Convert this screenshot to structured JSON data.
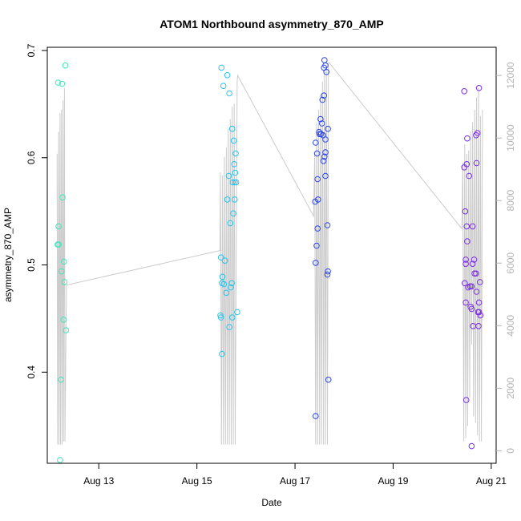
{
  "chart_data": {
    "type": "scatter",
    "title": "ATOM1 Northbound asymmetry_870_AMP",
    "xlabel": "Date",
    "ylabel": "asymmetry_870_AMP",
    "x_ticks": [
      {
        "value": 13.0,
        "label": "Aug 13"
      },
      {
        "value": 15.0,
        "label": "Aug 15"
      },
      {
        "value": 17.0,
        "label": "Aug 17"
      },
      {
        "value": 19.0,
        "label": "Aug 19"
      },
      {
        "value": 21.0,
        "label": "Aug 21"
      }
    ],
    "xlim": [
      11.95,
      21.1
    ],
    "ylim": [
      0.315,
      0.703
    ],
    "y_ticks": [
      {
        "value": 0.4,
        "label": "0.4"
      },
      {
        "value": 0.5,
        "label": "0.5"
      },
      {
        "value": 0.6,
        "label": "0.6"
      },
      {
        "value": 0.7,
        "label": "0.7"
      }
    ],
    "y2lim": [
      -400,
      12900
    ],
    "y2_ticks": [
      {
        "value": 0,
        "label": "0"
      },
      {
        "value": 2000,
        "label": "2000"
      },
      {
        "value": 4000,
        "label": "4000"
      },
      {
        "value": 6000,
        "label": "6000"
      },
      {
        "value": 8000,
        "label": "8000"
      },
      {
        "value": 10000,
        "label": "10000"
      },
      {
        "value": 12000,
        "label": "12000"
      }
    ],
    "colors": {
      "line": "#cccccc",
      "axis": "#000000",
      "right_axis": "#b3b3b3"
    },
    "series": [
      {
        "color": "#3fe6bb",
        "points": [
          {
            "x": 12.17,
            "y": 0.67
          },
          {
            "x": 12.25,
            "y": 0.669
          },
          {
            "x": 12.32,
            "y": 0.686
          },
          {
            "x": 12.18,
            "y": 0.536
          },
          {
            "x": 12.16,
            "y": 0.519
          },
          {
            "x": 12.18,
            "y": 0.519
          },
          {
            "x": 12.26,
            "y": 0.563
          },
          {
            "x": 12.29,
            "y": 0.503
          },
          {
            "x": 12.24,
            "y": 0.494
          },
          {
            "x": 12.3,
            "y": 0.484
          },
          {
            "x": 12.28,
            "y": 0.449
          },
          {
            "x": 12.33,
            "y": 0.439
          },
          {
            "x": 12.23,
            "y": 0.393
          },
          {
            "x": 12.21,
            "y": 0.318
          }
        ]
      },
      {
        "color": "#27c3ef",
        "points": [
          {
            "x": 15.5,
            "y": 0.684
          },
          {
            "x": 15.54,
            "y": 0.667
          },
          {
            "x": 15.62,
            "y": 0.677
          },
          {
            "x": 15.66,
            "y": 0.66
          },
          {
            "x": 15.72,
            "y": 0.627
          },
          {
            "x": 15.75,
            "y": 0.616
          },
          {
            "x": 15.79,
            "y": 0.604
          },
          {
            "x": 15.76,
            "y": 0.594
          },
          {
            "x": 15.78,
            "y": 0.586
          },
          {
            "x": 15.65,
            "y": 0.583
          },
          {
            "x": 15.73,
            "y": 0.577
          },
          {
            "x": 15.77,
            "y": 0.577
          },
          {
            "x": 15.8,
            "y": 0.577
          },
          {
            "x": 15.62,
            "y": 0.561
          },
          {
            "x": 15.77,
            "y": 0.561
          },
          {
            "x": 15.74,
            "y": 0.548
          },
          {
            "x": 15.68,
            "y": 0.539
          },
          {
            "x": 15.49,
            "y": 0.507
          },
          {
            "x": 15.57,
            "y": 0.504
          },
          {
            "x": 15.52,
            "y": 0.489
          },
          {
            "x": 15.51,
            "y": 0.483
          },
          {
            "x": 15.55,
            "y": 0.482
          },
          {
            "x": 15.6,
            "y": 0.474
          },
          {
            "x": 15.69,
            "y": 0.479
          },
          {
            "x": 15.71,
            "y": 0.483
          },
          {
            "x": 15.48,
            "y": 0.453
          },
          {
            "x": 15.49,
            "y": 0.451
          },
          {
            "x": 15.72,
            "y": 0.451
          },
          {
            "x": 15.66,
            "y": 0.442
          },
          {
            "x": 15.82,
            "y": 0.456
          },
          {
            "x": 15.51,
            "y": 0.417
          }
        ]
      },
      {
        "color": "#2a45ec",
        "points": [
          {
            "x": 17.6,
            "y": 0.691
          },
          {
            "x": 17.62,
            "y": 0.686
          },
          {
            "x": 17.59,
            "y": 0.684
          },
          {
            "x": 17.64,
            "y": 0.68
          },
          {
            "x": 17.59,
            "y": 0.658
          },
          {
            "x": 17.56,
            "y": 0.654
          },
          {
            "x": 17.52,
            "y": 0.636
          },
          {
            "x": 17.55,
            "y": 0.632
          },
          {
            "x": 17.67,
            "y": 0.627
          },
          {
            "x": 17.49,
            "y": 0.624
          },
          {
            "x": 17.5,
            "y": 0.622
          },
          {
            "x": 17.53,
            "y": 0.622
          },
          {
            "x": 17.57,
            "y": 0.621
          },
          {
            "x": 17.62,
            "y": 0.617
          },
          {
            "x": 17.42,
            "y": 0.614
          },
          {
            "x": 17.62,
            "y": 0.605
          },
          {
            "x": 17.45,
            "y": 0.604
          },
          {
            "x": 17.6,
            "y": 0.601
          },
          {
            "x": 17.58,
            "y": 0.597
          },
          {
            "x": 17.62,
            "y": 0.583
          },
          {
            "x": 17.46,
            "y": 0.58
          },
          {
            "x": 17.47,
            "y": 0.561
          },
          {
            "x": 17.41,
            "y": 0.559
          },
          {
            "x": 17.66,
            "y": 0.537
          },
          {
            "x": 17.46,
            "y": 0.534
          },
          {
            "x": 17.44,
            "y": 0.518
          },
          {
            "x": 17.42,
            "y": 0.502
          },
          {
            "x": 17.67,
            "y": 0.494
          },
          {
            "x": 17.66,
            "y": 0.491
          },
          {
            "x": 17.68,
            "y": 0.393
          },
          {
            "x": 17.42,
            "y": 0.359
          }
        ]
      },
      {
        "color": "#7b2ee6",
        "points": [
          {
            "x": 20.75,
            "y": 0.665
          },
          {
            "x": 20.45,
            "y": 0.662
          },
          {
            "x": 20.72,
            "y": 0.623
          },
          {
            "x": 20.69,
            "y": 0.621
          },
          {
            "x": 20.51,
            "y": 0.618
          },
          {
            "x": 20.7,
            "y": 0.595
          },
          {
            "x": 20.5,
            "y": 0.594
          },
          {
            "x": 20.45,
            "y": 0.591
          },
          {
            "x": 20.55,
            "y": 0.583
          },
          {
            "x": 20.47,
            "y": 0.55
          },
          {
            "x": 20.5,
            "y": 0.536
          },
          {
            "x": 20.62,
            "y": 0.536
          },
          {
            "x": 20.51,
            "y": 0.522
          },
          {
            "x": 20.48,
            "y": 0.505
          },
          {
            "x": 20.65,
            "y": 0.505
          },
          {
            "x": 20.48,
            "y": 0.501
          },
          {
            "x": 20.62,
            "y": 0.501
          },
          {
            "x": 20.66,
            "y": 0.492
          },
          {
            "x": 20.69,
            "y": 0.492
          },
          {
            "x": 20.46,
            "y": 0.483
          },
          {
            "x": 20.77,
            "y": 0.484
          },
          {
            "x": 20.53,
            "y": 0.479
          },
          {
            "x": 20.57,
            "y": 0.48
          },
          {
            "x": 20.6,
            "y": 0.48
          },
          {
            "x": 20.7,
            "y": 0.475
          },
          {
            "x": 20.48,
            "y": 0.465
          },
          {
            "x": 20.75,
            "y": 0.465
          },
          {
            "x": 20.58,
            "y": 0.461
          },
          {
            "x": 20.6,
            "y": 0.459
          },
          {
            "x": 20.73,
            "y": 0.456
          },
          {
            "x": 20.75,
            "y": 0.456
          },
          {
            "x": 20.78,
            "y": 0.453
          },
          {
            "x": 20.63,
            "y": 0.443
          },
          {
            "x": 20.74,
            "y": 0.443
          },
          {
            "x": 20.49,
            "y": 0.374
          },
          {
            "x": 20.6,
            "y": 0.331
          }
        ]
      }
    ],
    "line_series": {
      "axis": "right",
      "points": [
        {
          "x": 12.15,
          "y": 9500
        },
        {
          "x": 12.16,
          "y": 200
        },
        {
          "x": 12.18,
          "y": 10200
        },
        {
          "x": 12.19,
          "y": 200
        },
        {
          "x": 12.21,
          "y": 10800
        },
        {
          "x": 12.22,
          "y": 200
        },
        {
          "x": 12.24,
          "y": 10900
        },
        {
          "x": 12.25,
          "y": 200
        },
        {
          "x": 12.27,
          "y": 11200
        },
        {
          "x": 12.28,
          "y": 300
        },
        {
          "x": 12.3,
          "y": 11600
        },
        {
          "x": 12.31,
          "y": 300
        },
        {
          "x": 12.34,
          "y": 5300
        },
        {
          "x": 15.47,
          "y": 6400
        },
        {
          "x": 15.48,
          "y": 8900
        },
        {
          "x": 15.5,
          "y": 200
        },
        {
          "x": 15.52,
          "y": 8800
        },
        {
          "x": 15.54,
          "y": 200
        },
        {
          "x": 15.56,
          "y": 9400
        },
        {
          "x": 15.58,
          "y": 200
        },
        {
          "x": 15.6,
          "y": 9700
        },
        {
          "x": 15.62,
          "y": 200
        },
        {
          "x": 15.64,
          "y": 10300
        },
        {
          "x": 15.66,
          "y": 200
        },
        {
          "x": 15.68,
          "y": 10600
        },
        {
          "x": 15.7,
          "y": 200
        },
        {
          "x": 15.72,
          "y": 11000
        },
        {
          "x": 15.74,
          "y": 200
        },
        {
          "x": 15.76,
          "y": 11100
        },
        {
          "x": 15.78,
          "y": 200
        },
        {
          "x": 15.82,
          "y": 11800
        },
        {
          "x": 15.83,
          "y": 12000
        },
        {
          "x": 17.38,
          "y": 7500
        },
        {
          "x": 17.4,
          "y": 9500
        },
        {
          "x": 17.42,
          "y": 200
        },
        {
          "x": 17.44,
          "y": 10500
        },
        {
          "x": 17.46,
          "y": 200
        },
        {
          "x": 17.48,
          "y": 10900
        },
        {
          "x": 17.5,
          "y": 200
        },
        {
          "x": 17.52,
          "y": 11400
        },
        {
          "x": 17.54,
          "y": 200
        },
        {
          "x": 17.56,
          "y": 11800
        },
        {
          "x": 17.58,
          "y": 200
        },
        {
          "x": 17.6,
          "y": 12100
        },
        {
          "x": 17.62,
          "y": 200
        },
        {
          "x": 17.64,
          "y": 12300
        },
        {
          "x": 17.66,
          "y": 200
        },
        {
          "x": 17.68,
          "y": 12400
        },
        {
          "x": 17.7,
          "y": 12400
        },
        {
          "x": 20.4,
          "y": 7100
        },
        {
          "x": 20.42,
          "y": 9200
        },
        {
          "x": 20.44,
          "y": 300
        },
        {
          "x": 20.46,
          "y": 9800
        },
        {
          "x": 20.48,
          "y": 400
        },
        {
          "x": 20.5,
          "y": 9500
        },
        {
          "x": 20.52,
          "y": 800
        },
        {
          "x": 20.54,
          "y": 9600
        },
        {
          "x": 20.56,
          "y": 1700
        },
        {
          "x": 20.58,
          "y": 10200
        },
        {
          "x": 20.6,
          "y": 3400
        },
        {
          "x": 20.62,
          "y": 10500
        },
        {
          "x": 20.64,
          "y": 1100
        },
        {
          "x": 20.66,
          "y": 10900
        },
        {
          "x": 20.68,
          "y": 900
        },
        {
          "x": 20.7,
          "y": 11300
        },
        {
          "x": 20.72,
          "y": 500
        },
        {
          "x": 20.74,
          "y": 11600
        },
        {
          "x": 20.76,
          "y": 300
        },
        {
          "x": 20.78,
          "y": 10700
        },
        {
          "x": 20.8,
          "y": 300
        },
        {
          "x": 20.82,
          "y": 10900
        }
      ]
    }
  }
}
